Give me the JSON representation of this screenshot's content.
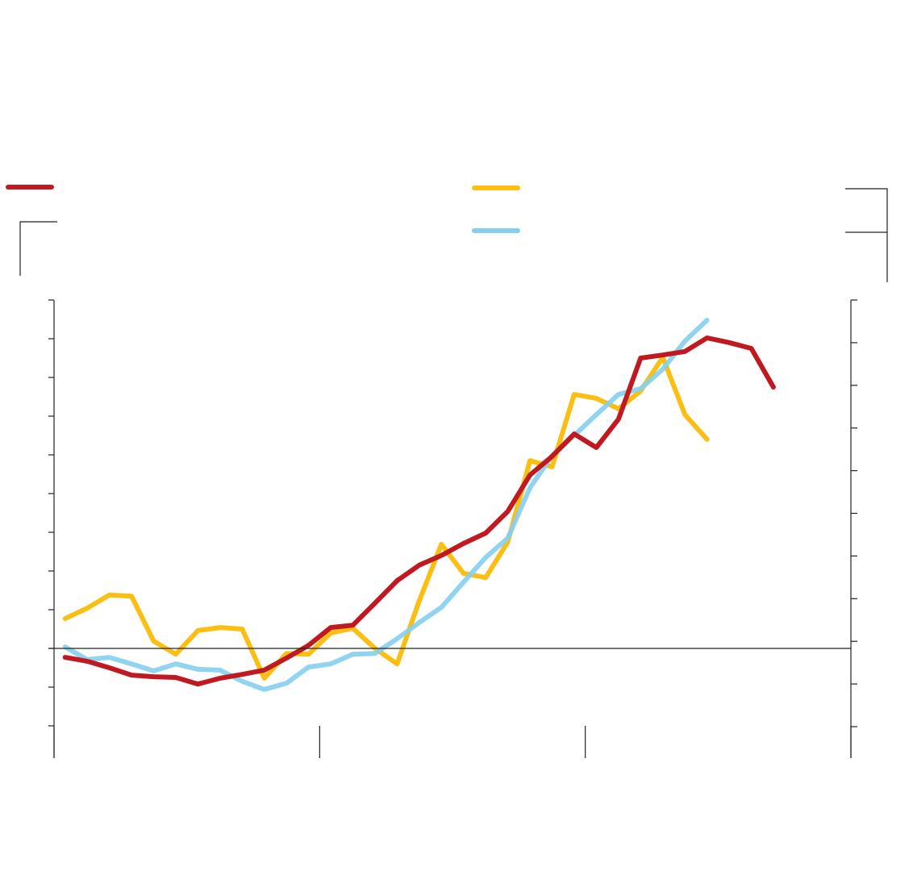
{
  "chart_data": {
    "type": "line",
    "x": [
      0.5,
      1.5,
      2.5,
      3.5,
      4.5,
      5.5,
      6.5,
      7.5,
      8.5,
      9.5,
      10.5,
      11.5,
      12.5,
      13.5,
      14.5,
      15.5,
      16.5,
      17.5,
      18.5,
      19.5,
      20.5,
      21.5,
      22.5,
      23.5,
      24.5,
      25.5,
      26.5,
      27.5,
      28.5,
      29.5,
      30.5,
      31.5,
      32.5
    ],
    "xlim": [
      0,
      36
    ],
    "xticks": [
      0,
      12,
      24,
      36
    ],
    "ylim": [
      -2.833,
      9
    ],
    "yticks": [
      -2,
      -1,
      0,
      1,
      2,
      3,
      4,
      5,
      6,
      7,
      8,
      9
    ],
    "y2lim": [
      -0.737,
      10
    ],
    "y2ticks": [
      0,
      1,
      2,
      3,
      4,
      5,
      6,
      7,
      8,
      9,
      10
    ],
    "series": [
      {
        "color": "#c0191f",
        "values": [
          -0.23,
          -0.33,
          -0.5,
          -0.69,
          -0.73,
          -0.75,
          -0.92,
          -0.77,
          -0.67,
          -0.56,
          -0.25,
          0.08,
          0.54,
          0.6,
          1.17,
          1.75,
          2.15,
          2.4,
          2.71,
          2.98,
          3.54,
          4.48,
          4.96,
          5.54,
          5.19,
          5.92,
          7.5,
          7.58,
          7.67,
          8.02,
          7.9,
          7.75,
          6.75
        ]
      },
      {
        "color": "#fbbf14",
        "values": [
          0.77,
          1.04,
          1.38,
          1.35,
          0.19,
          -0.15,
          0.46,
          0.54,
          0.5,
          -0.77,
          -0.13,
          -0.15,
          0.4,
          0.52,
          0,
          -0.4,
          1.23,
          2.69,
          1.94,
          1.83,
          2.75,
          4.85,
          4.69,
          6.56,
          6.46,
          6.19,
          6.65,
          7.52,
          6.04,
          5.4,
          null,
          null,
          null
        ]
      },
      {
        "color": "#84cff0",
        "values": [
          0.04,
          -0.29,
          -0.23,
          -0.4,
          -0.58,
          -0.4,
          -0.54,
          -0.56,
          -0.85,
          -1.06,
          -0.9,
          -0.48,
          -0.4,
          -0.15,
          -0.13,
          0.25,
          0.67,
          1.06,
          1.71,
          2.35,
          2.85,
          4.15,
          4.98,
          5.5,
          6.04,
          6.56,
          6.71,
          7.21,
          7.94,
          8.48,
          null,
          null,
          null
        ]
      }
    ]
  }
}
